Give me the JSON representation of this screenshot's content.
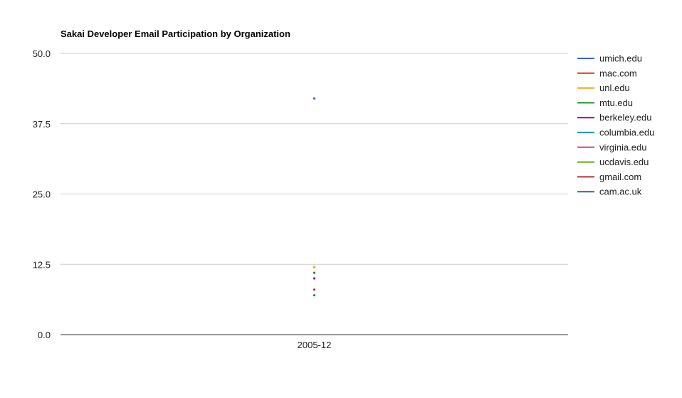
{
  "chart_data": {
    "type": "line",
    "title": "Sakai Developer Email Participation by Organization",
    "xlabel": "",
    "ylabel": "",
    "categories": [
      "2005-12"
    ],
    "ylim": [
      0,
      50
    ],
    "yticks": [
      "0.0",
      "12.5",
      "25.0",
      "37.5",
      "50.0"
    ],
    "grid": true,
    "legend_position": "right",
    "series": [
      {
        "name": "umich.edu",
        "color": "#3366cc",
        "values": [
          42
        ]
      },
      {
        "name": "mac.com",
        "color": "#dc3912",
        "values": [
          null
        ]
      },
      {
        "name": "unl.edu",
        "color": "#ff9900",
        "values": [
          12
        ]
      },
      {
        "name": "mtu.edu",
        "color": "#109618",
        "values": [
          11
        ]
      },
      {
        "name": "berkeley.edu",
        "color": "#990099",
        "values": [
          10
        ]
      },
      {
        "name": "columbia.edu",
        "color": "#0099c6",
        "values": [
          null
        ]
      },
      {
        "name": "virginia.edu",
        "color": "#dd4477",
        "values": [
          null
        ]
      },
      {
        "name": "ucdavis.edu",
        "color": "#66aa00",
        "values": [
          null
        ]
      },
      {
        "name": "gmail.com",
        "color": "#b82e2e",
        "values": [
          8
        ]
      },
      {
        "name": "cam.ac.uk",
        "color": "#316395",
        "values": [
          7
        ]
      }
    ]
  }
}
